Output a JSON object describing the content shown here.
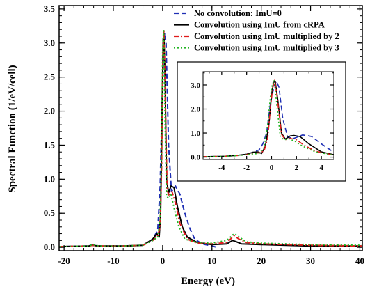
{
  "chart_data": {
    "type": "line",
    "xlabel": "Energy (eV)",
    "ylabel": "Spectral Function (1/eV/cell)",
    "xlim": [
      -21,
      40.5
    ],
    "ylim": [
      -0.05,
      3.55
    ],
    "xticks": [
      -20,
      -10,
      0,
      10,
      20,
      30,
      40
    ],
    "yticks": [
      0.0,
      0.5,
      1.0,
      1.5,
      2.0,
      2.5,
      3.0,
      3.5
    ],
    "legend_position": "top-right",
    "series": [
      {
        "name": "No convolution: ImU=0",
        "color": "#1f2fb4",
        "dash": "dash",
        "x": [
          -21,
          -15,
          -14.2,
          -13,
          -8,
          -4,
          -2,
          -1,
          -0.5,
          -0.1,
          0.2,
          0.4,
          0.7,
          1.2,
          1.8,
          2.6,
          3.5,
          4.5,
          5.5,
          6.5,
          8,
          10,
          11
        ],
        "y": [
          0.01,
          0.02,
          0.04,
          0.02,
          0.02,
          0.03,
          0.12,
          0.25,
          0.9,
          2.2,
          2.9,
          3.15,
          3.0,
          1.5,
          0.82,
          0.9,
          0.78,
          0.5,
          0.28,
          0.12,
          0.05,
          0.02,
          0.0
        ]
      },
      {
        "name": "Convolution using ImU from cRPA",
        "color": "#000000",
        "dash": "solid",
        "x": [
          -21,
          -15,
          -14.2,
          -13,
          -8,
          -4,
          -2,
          -1.2,
          -0.7,
          -0.4,
          -0.1,
          0.1,
          0.25,
          0.5,
          0.8,
          1.2,
          1.7,
          2.3,
          3.0,
          4.0,
          5.0,
          7,
          10,
          13,
          14.2,
          15,
          16,
          20,
          30,
          40.5
        ],
        "y": [
          0.01,
          0.02,
          0.03,
          0.02,
          0.02,
          0.03,
          0.12,
          0.2,
          0.15,
          0.5,
          2.0,
          3.05,
          3.15,
          2.5,
          1.0,
          0.8,
          0.9,
          0.88,
          0.6,
          0.3,
          0.15,
          0.07,
          0.04,
          0.05,
          0.1,
          0.08,
          0.05,
          0.04,
          0.02,
          0.02
        ]
      },
      {
        "name": "Convolution using ImU multiplied by 2",
        "color": "#e01b1b",
        "dash": "dashdot",
        "x": [
          -21,
          -15,
          -14.2,
          -13,
          -8,
          -4,
          -2,
          -1.0,
          -0.5,
          -0.2,
          0.05,
          0.25,
          0.5,
          0.9,
          1.3,
          1.9,
          2.6,
          3.5,
          5.0,
          7,
          10,
          13,
          14.5,
          15.5,
          17,
          20,
          30,
          40.5
        ],
        "y": [
          0.01,
          0.02,
          0.03,
          0.02,
          0.02,
          0.03,
          0.1,
          0.17,
          0.3,
          1.2,
          2.8,
          3.2,
          2.3,
          0.85,
          0.75,
          0.82,
          0.65,
          0.35,
          0.12,
          0.06,
          0.05,
          0.07,
          0.17,
          0.12,
          0.07,
          0.05,
          0.03,
          0.02
        ]
      },
      {
        "name": "Convolution using ImU multiplied by 3",
        "color": "#22b522",
        "dash": "dot",
        "x": [
          -21,
          -15,
          -14.2,
          -13,
          -8,
          -4,
          -2,
          -1.0,
          -0.5,
          -0.2,
          0.0,
          0.2,
          0.45,
          0.8,
          1.2,
          1.7,
          2.4,
          3.3,
          4.5,
          7,
          10,
          13,
          14.5,
          15.5,
          17,
          20,
          30,
          40.5
        ],
        "y": [
          0.01,
          0.02,
          0.04,
          0.02,
          0.02,
          0.03,
          0.1,
          0.15,
          0.4,
          1.5,
          2.9,
          3.2,
          2.0,
          0.75,
          0.72,
          0.78,
          0.55,
          0.3,
          0.12,
          0.07,
          0.06,
          0.1,
          0.2,
          0.15,
          0.08,
          0.06,
          0.04,
          0.03
        ]
      }
    ],
    "inset": {
      "type": "line",
      "xlim": [
        -5.5,
        5
      ],
      "ylim": [
        -0.1,
        3.55
      ],
      "xticks": [
        -4,
        -2,
        0,
        2,
        4
      ],
      "yticks": [
        0.0,
        1.0,
        2.0,
        3.0
      ],
      "series": [
        {
          "name": "No convolution: ImU=0",
          "x": [
            -5.5,
            -4,
            -3,
            -2,
            -1.5,
            -1,
            -0.7,
            -0.4,
            -0.1,
            0.2,
            0.4,
            0.6,
            0.9,
            1.3,
            1.8,
            2.5,
            3.2,
            4.0,
            5.0
          ],
          "y": [
            0.02,
            0.03,
            0.06,
            0.12,
            0.2,
            0.3,
            0.55,
            1.0,
            2.2,
            2.95,
            3.15,
            2.9,
            1.6,
            0.82,
            0.78,
            0.92,
            0.86,
            0.55,
            0.2
          ]
        },
        {
          "name": "Convolution using ImU from cRPA",
          "x": [
            -5.5,
            -4,
            -3,
            -2,
            -1.5,
            -1.1,
            -0.8,
            -0.5,
            -0.2,
            0.0,
            0.15,
            0.3,
            0.5,
            0.8,
            1.1,
            1.5,
            1.8,
            2.3,
            3.0,
            4.0,
            5.0
          ],
          "y": [
            0.02,
            0.03,
            0.06,
            0.12,
            0.2,
            0.22,
            0.15,
            0.45,
            1.4,
            2.6,
            3.1,
            3.15,
            2.4,
            1.0,
            0.75,
            0.88,
            0.9,
            0.85,
            0.55,
            0.22,
            0.1
          ]
        },
        {
          "name": "Convolution using ImU multiplied by 2",
          "x": [
            -5.5,
            -4,
            -3,
            -2,
            -1.5,
            -1.0,
            -0.6,
            -0.3,
            -0.1,
            0.1,
            0.25,
            0.45,
            0.8,
            1.1,
            1.5,
            2.0,
            2.6,
            3.5,
            5.0
          ],
          "y": [
            0.02,
            0.03,
            0.05,
            0.1,
            0.15,
            0.18,
            0.25,
            0.8,
            2.0,
            2.9,
            3.2,
            2.5,
            0.95,
            0.72,
            0.78,
            0.72,
            0.5,
            0.25,
            0.08
          ]
        },
        {
          "name": "Convolution using ImU multiplied by 3",
          "x": [
            -5.5,
            -4,
            -3,
            -2,
            -1.5,
            -1.0,
            -0.6,
            -0.3,
            -0.1,
            0.05,
            0.2,
            0.4,
            0.7,
            1.0,
            1.4,
            1.9,
            2.5,
            3.5,
            5.0
          ],
          "y": [
            0.02,
            0.03,
            0.05,
            0.1,
            0.13,
            0.15,
            0.4,
            1.4,
            2.5,
            3.0,
            3.2,
            2.3,
            0.85,
            0.72,
            0.76,
            0.65,
            0.45,
            0.22,
            0.08
          ]
        }
      ]
    }
  }
}
